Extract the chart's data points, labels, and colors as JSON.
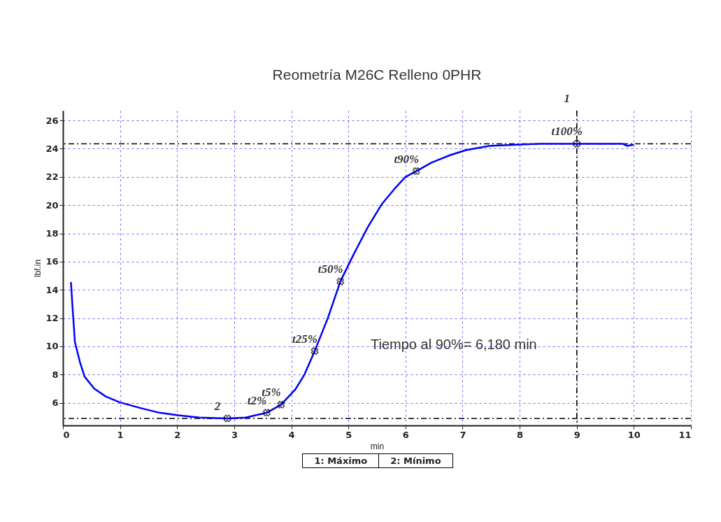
{
  "chart_data": {
    "type": "line",
    "title": "Reometría M26C Relleno 0PHR",
    "xlabel": "min",
    "ylabel": "lbf.in",
    "xlim": [
      0,
      11
    ],
    "ylim": [
      4.4,
      26.7
    ],
    "xticks": [
      0,
      1,
      2,
      3,
      4,
      5,
      6,
      7,
      8,
      9,
      10,
      11
    ],
    "yticks": [
      6,
      8,
      10,
      12,
      14,
      16,
      18,
      20,
      22,
      24,
      26
    ],
    "grid": true,
    "series": [
      {
        "type": "line",
        "color": "#0000ff",
        "marker": "none",
        "x": [
          0.14,
          0.17,
          0.21,
          0.3,
          0.38,
          0.55,
          0.75,
          1.0,
          1.37,
          1.69,
          2.02,
          2.39,
          2.88,
          3.2,
          3.57,
          3.82,
          4.07,
          4.23,
          4.41,
          4.64,
          4.86,
          5.09,
          5.34,
          5.59,
          5.83,
          6.0,
          6.19,
          6.45,
          6.78,
          7.06,
          7.47,
          7.96,
          8.37,
          8.98,
          9.8,
          9.88,
          10.0
        ],
        "values": [
          14.55,
          12.65,
          10.3,
          8.85,
          7.85,
          7.0,
          6.45,
          6.03,
          5.62,
          5.3,
          5.12,
          4.96,
          4.9,
          4.96,
          5.3,
          5.87,
          6.95,
          8.0,
          9.67,
          12.0,
          14.6,
          16.5,
          18.44,
          20.1,
          21.26,
          22.0,
          22.41,
          23.0,
          23.54,
          23.9,
          24.2,
          24.28,
          24.35,
          24.35,
          24.35,
          24.2,
          24.28
        ]
      },
      {
        "type": "scatter",
        "color": "#000000",
        "marker": "cross",
        "x": [
          2.88,
          3.57,
          3.82,
          4.41,
          4.86,
          6.19,
          9.0
        ],
        "values": [
          4.9,
          5.3,
          5.87,
          9.67,
          14.6,
          22.41,
          24.35
        ]
      }
    ],
    "ref_lines": [
      {
        "axis": "y",
        "value": 24.35,
        "color": "#000000",
        "line_style": "dashed"
      },
      {
        "axis": "y",
        "value": 4.9,
        "color": "#000000",
        "line_style": "dashed"
      },
      {
        "axis": "x",
        "value": 9,
        "color": "#000000",
        "line_style": "dashed"
      }
    ],
    "annotations": [
      {
        "text": "t2%",
        "x": 3.57,
        "y": 5.3
      },
      {
        "text": "t5%",
        "x": 3.82,
        "y": 5.87
      },
      {
        "text": "t25%",
        "x": 4.41,
        "y": 9.67
      },
      {
        "text": "t50%",
        "x": 4.86,
        "y": 14.6
      },
      {
        "text": "t90%",
        "x": 6.19,
        "y": 22.41
      },
      {
        "text": "t100%",
        "x": 9.0,
        "y": 24.35
      },
      {
        "text": "1",
        "x": 9.0,
        "y": 26.7
      },
      {
        "text": "2",
        "x": 2.88,
        "y": 4.9
      },
      "Tiempo al 90%= 6,180 min",
      "1: Máximo",
      "2: Mínimo"
    ]
  }
}
